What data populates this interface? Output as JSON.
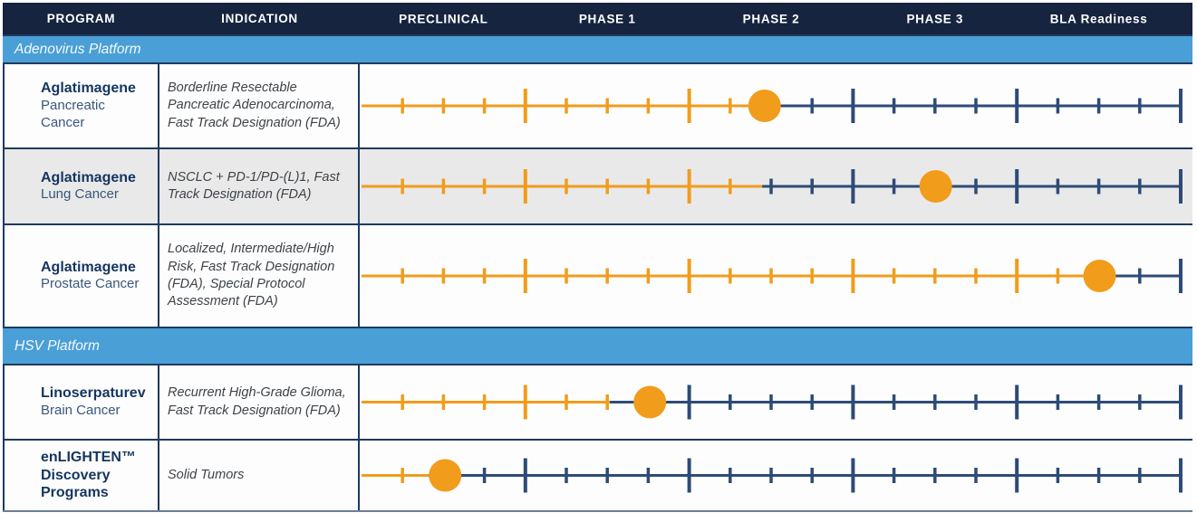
{
  "header": {
    "program": "PROGRAM",
    "indication": "INDICATION",
    "phases": [
      "PRECLINICAL",
      "PHASE 1",
      "PHASE 2",
      "PHASE 3",
      "BLA Readiness"
    ]
  },
  "sections": [
    {
      "platform": "Adenovirus Platform"
    },
    {
      "platform": "HSV Platform"
    }
  ],
  "chart_data": {
    "type": "table",
    "description": "Clinical-stage pipeline chart: orange ruler line shows completed progress across development phases; orange dot marks the current stage of each program.",
    "phases": [
      "PRECLINICAL",
      "PHASE 1",
      "PHASE 2",
      "PHASE 3",
      "BLA Readiness"
    ],
    "tick_step_fraction": 0.05,
    "major_tick_every_fraction": 0.2,
    "programs": [
      {
        "platform": "Adenovirus Platform",
        "program": "Aglatimagene",
        "cancer": "Pancreatic Cancer",
        "indication": "Borderline Resectable Pancreatic Adenocarcinoma, Fast Track Designation (FDA)",
        "stage": "Phase 2",
        "fill_fraction": 0.492,
        "marker_fraction": 0.492
      },
      {
        "platform": "Adenovirus Platform",
        "program": "Aglatimagene",
        "cancer": "Lung Cancer",
        "indication": "NSCLC + PD-1/PD-(L)1, Fast Track Designation (FDA)",
        "stage": "Phase 3",
        "fill_fraction": 0.489,
        "marker_fraction": 0.701
      },
      {
        "platform": "Adenovirus Platform",
        "program": "Aglatimagene",
        "cancer": "Prostate Cancer",
        "indication": "Localized, Intermediate/High Risk, Fast Track Designation (FDA), Special Protocol Assessment (FDA)",
        "stage": "BLA Readiness",
        "fill_fraction": 0.901,
        "marker_fraction": 0.901
      },
      {
        "platform": "HSV Platform",
        "program": "Linoserpaturev",
        "cancer": "Brain Cancer",
        "indication": "Recurrent High-Grade Glioma, Fast Track Designation (FDA)",
        "stage": "Phase 1",
        "fill_fraction": 0.303,
        "marker_fraction": 0.352
      },
      {
        "platform": "HSV Platform",
        "program": "enLIGHTEN™ Discovery Programs",
        "cancer": "",
        "indication": "Solid Tumors",
        "stage": "Preclinical",
        "fill_fraction": 0.082,
        "marker_fraction": 0.102
      }
    ],
    "colors": {
      "progress_orange": "#F19C1B",
      "remaining_navy": "#2D4B76",
      "header_bg": "#16243F",
      "platform_bg": "#4A9FD6",
      "alt_row_bg": "#E9E9EA",
      "border_navy": "#1F3A5F",
      "bottom_rule": "#6B7E95"
    }
  }
}
